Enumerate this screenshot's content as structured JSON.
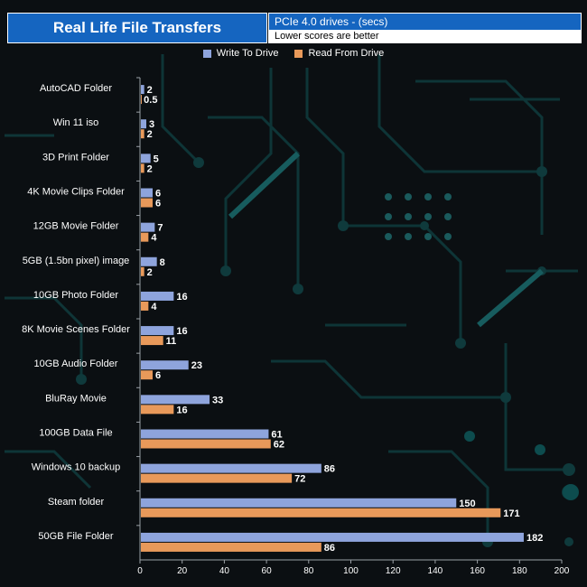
{
  "header": {
    "title": "Real Life File Transfers",
    "subtitle": "PCIe 4.0 drives - (secs)",
    "note": "Lower scores are better"
  },
  "legend": {
    "write_label": "Write To  Drive",
    "read_label": "Read From  Drive"
  },
  "colors": {
    "write": "#8ea4dc",
    "read": "#e8995a",
    "accent": "#1565c0"
  },
  "chart_data": {
    "type": "bar",
    "orientation": "horizontal",
    "title": "Real Life File Transfers",
    "subtitle": "PCIe 4.0 drives - (secs)",
    "categories": [
      "AutoCAD Folder",
      "Win 11 iso",
      "3D Print Folder",
      "4K Movie Clips Folder",
      "12GB Movie Folder",
      "5GB (1.5bn pixel) image",
      "10GB Photo Folder",
      "8K Movie Scenes Folder",
      "10GB Audio Folder",
      "BluRay Movie",
      "100GB Data File",
      "Windows 10 backup",
      "Steam folder",
      "50GB File Folder"
    ],
    "series": [
      {
        "name": "Write To  Drive",
        "values": [
          2,
          3,
          5,
          6,
          7,
          8,
          16,
          16,
          23,
          33,
          61,
          86,
          150,
          182
        ]
      },
      {
        "name": "Read From  Drive",
        "values": [
          0.5,
          2,
          2,
          6,
          4,
          2,
          4,
          11,
          6,
          16,
          62,
          72,
          171,
          86
        ]
      }
    ],
    "value_labels": {
      "write": [
        "2",
        "3",
        "5",
        "6",
        "7",
        "8",
        "16",
        "16",
        "23",
        "33",
        "61",
        "86",
        "150",
        "182"
      ],
      "read": [
        "0.5",
        "2",
        "2",
        "6",
        "4",
        "2",
        "4",
        "11",
        "6",
        "16",
        "62",
        "72",
        "171",
        "86"
      ]
    },
    "xlim": [
      0,
      200
    ],
    "xticks": [
      "0",
      "20",
      "40",
      "60",
      "80",
      "100",
      "120",
      "140",
      "160",
      "180",
      "200"
    ],
    "xlabel": "",
    "ylabel": "",
    "legend_position": "top-center"
  }
}
